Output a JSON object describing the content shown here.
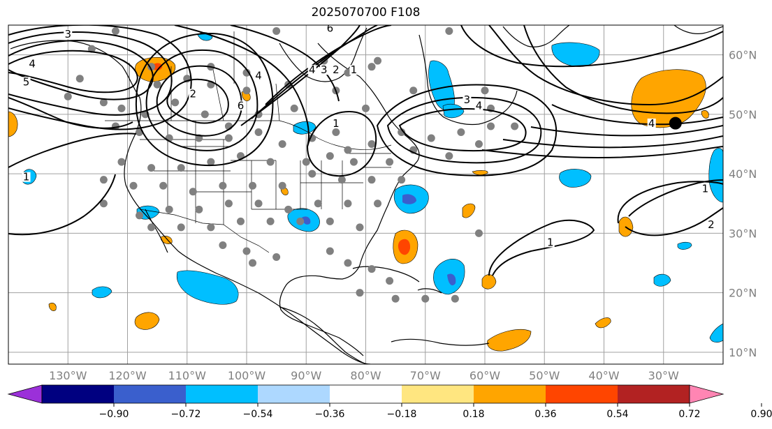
{
  "title": "2025070700 F108",
  "axes": {
    "lon_labels": [
      "130°W",
      "120°W",
      "110°W",
      "100°W",
      "90°W",
      "80°W",
      "70°W",
      "60°W",
      "50°W",
      "40°W",
      "30°W"
    ],
    "lat_labels": [
      "60°N",
      "50°N",
      "40°N",
      "30°N",
      "20°N",
      "10°N"
    ],
    "lon_values": [
      -130,
      -120,
      -110,
      -100,
      -90,
      -80,
      -70,
      -60,
      -50,
      -40,
      -30
    ],
    "lat_values": [
      60,
      50,
      40,
      30,
      20,
      10
    ]
  },
  "colorbar": {
    "tick_labels": [
      "−0.90",
      "−0.72",
      "−0.54",
      "−0.36",
      "−0.18",
      "0.18",
      "0.36",
      "0.54",
      "0.72",
      "0.90"
    ],
    "colors": [
      "#9b30d9",
      "#000080",
      "#3a5fcd",
      "#00bfff",
      "#add8ff",
      "#ffffff",
      "#ffe680",
      "#ffa500",
      "#ff4500",
      "#b22222",
      "#ff85b3"
    ]
  },
  "contour_labels": [
    {
      "text": "3",
      "lon": -130,
      "lat": 63
    },
    {
      "text": "4",
      "lon": -136,
      "lat": 58
    },
    {
      "text": "5",
      "lon": -137,
      "lat": 55
    },
    {
      "text": "2",
      "lon": -109,
      "lat": 53
    },
    {
      "text": "4",
      "lon": -98,
      "lat": 56
    },
    {
      "text": "6",
      "lon": -101,
      "lat": 51
    },
    {
      "text": "4",
      "lon": -89,
      "lat": 57
    },
    {
      "text": "3",
      "lon": -87,
      "lat": 57
    },
    {
      "text": "2",
      "lon": -85,
      "lat": 57
    },
    {
      "text": "1",
      "lon": -82,
      "lat": 57
    },
    {
      "text": "6",
      "lon": -86,
      "lat": 64
    },
    {
      "text": "1",
      "lon": -85,
      "lat": 48
    },
    {
      "text": "3",
      "lon": -63,
      "lat": 52
    },
    {
      "text": "4",
      "lon": -61,
      "lat": 51
    },
    {
      "text": "1",
      "lon": -137,
      "lat": 39
    },
    {
      "text": "4",
      "lon": -32,
      "lat": 48
    },
    {
      "text": "1",
      "lon": -23,
      "lat": 37
    },
    {
      "text": "2",
      "lon": -22,
      "lat": 31
    },
    {
      "text": "1",
      "lon": -49,
      "lat": 28
    }
  ],
  "station_points": [
    [
      -95,
      64
    ],
    [
      -66,
      64
    ],
    [
      -122,
      64
    ],
    [
      -126,
      61
    ],
    [
      -116,
      58
    ],
    [
      -106,
      58
    ],
    [
      -87,
      59
    ],
    [
      -78,
      59
    ],
    [
      -100,
      57
    ],
    [
      -128,
      56
    ],
    [
      -130,
      53
    ],
    [
      -124,
      52
    ],
    [
      -115,
      55
    ],
    [
      -110,
      56
    ],
    [
      -106,
      55
    ],
    [
      -100,
      54
    ],
    [
      -93,
      55
    ],
    [
      -72,
      54
    ],
    [
      -121,
      51
    ],
    [
      -117,
      50
    ],
    [
      -112,
      52
    ],
    [
      -107,
      50
    ],
    [
      -103,
      48
    ],
    [
      -98,
      50
    ],
    [
      -92,
      51
    ],
    [
      -85,
      54
    ],
    [
      -80,
      51
    ],
    [
      -122,
      48
    ],
    [
      -118,
      47
    ],
    [
      -113,
      46
    ],
    [
      -108,
      46
    ],
    [
      -103,
      46
    ],
    [
      -98,
      47
    ],
    [
      -94,
      45
    ],
    [
      -89,
      46
    ],
    [
      -85,
      47
    ],
    [
      -83,
      44
    ],
    [
      -79,
      45
    ],
    [
      -74,
      47
    ],
    [
      -69,
      46
    ],
    [
      -64,
      47
    ],
    [
      -59,
      48
    ],
    [
      -55,
      48
    ],
    [
      -61,
      45
    ],
    [
      -66,
      43
    ],
    [
      -72,
      44
    ],
    [
      -76,
      42
    ],
    [
      -82,
      42
    ],
    [
      -86,
      43
    ],
    [
      -90,
      42
    ],
    [
      -96,
      42
    ],
    [
      -101,
      43
    ],
    [
      -106,
      42
    ],
    [
      -111,
      41
    ],
    [
      -116,
      41
    ],
    [
      -121,
      42
    ],
    [
      -124,
      39
    ],
    [
      -119,
      38
    ],
    [
      -114,
      38
    ],
    [
      -109,
      37
    ],
    [
      -104,
      38
    ],
    [
      -99,
      38
    ],
    [
      -94,
      38
    ],
    [
      -89,
      40
    ],
    [
      -84,
      39
    ],
    [
      -79,
      39
    ],
    [
      -74,
      39
    ],
    [
      -124,
      35
    ],
    [
      -118,
      33
    ],
    [
      -113,
      34
    ],
    [
      -108,
      34
    ],
    [
      -103,
      35
    ],
    [
      -98,
      35
    ],
    [
      -93,
      34
    ],
    [
      -88,
      35
    ],
    [
      -83,
      35
    ],
    [
      -78,
      35
    ],
    [
      -116,
      31
    ],
    [
      -111,
      31
    ],
    [
      -106,
      31
    ],
    [
      -101,
      32
    ],
    [
      -96,
      32
    ],
    [
      -91,
      32
    ],
    [
      -86,
      32
    ],
    [
      -81,
      31
    ],
    [
      -104,
      28
    ],
    [
      -100,
      27
    ],
    [
      -95,
      26
    ],
    [
      -86,
      27
    ],
    [
      -83,
      25
    ],
    [
      -79,
      24
    ],
    [
      -76,
      22
    ],
    [
      -61,
      30
    ],
    [
      -99,
      25
    ],
    [
      -81,
      20
    ],
    [
      -75,
      19
    ],
    [
      -70,
      19
    ],
    [
      -65,
      19
    ],
    [
      -79,
      58
    ],
    [
      -83,
      57
    ],
    [
      -60,
      54
    ],
    [
      -59,
      51
    ]
  ],
  "marker": {
    "lon": -28,
    "lat": 48.5
  }
}
